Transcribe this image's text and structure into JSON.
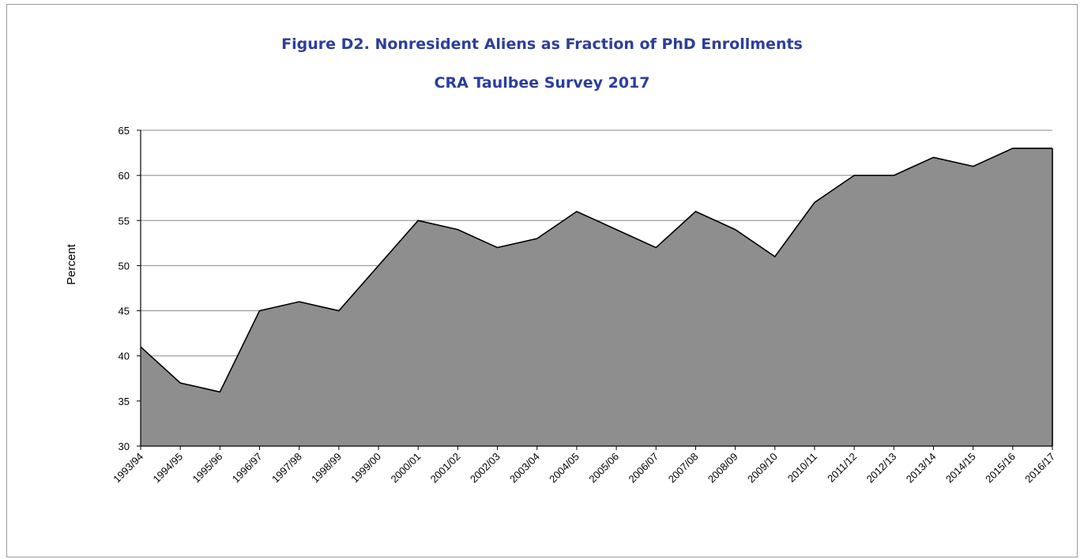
{
  "chart_data": {
    "type": "area",
    "title": "Figure D2. Nonresident Aliens as Fraction of PhD Enrollments",
    "subtitle": "CRA Taulbee Survey 2017",
    "y_label": "Percent",
    "categories": [
      "1993/94",
      "1994/95",
      "1995/96",
      "1996/97",
      "1997/98",
      "1998/99",
      "1999/00",
      "2000/01",
      "2001/02",
      "2002/03",
      "2003/04",
      "2004/05",
      "2005/06",
      "2006/07",
      "2007/08",
      "2008/09",
      "2009/10",
      "2010/11",
      "2011/12",
      "2012/13",
      "2013/14",
      "2014/15",
      "2015/16",
      "2016/17"
    ],
    "values": [
      41,
      37,
      36,
      45,
      46,
      45,
      50,
      55,
      54,
      52,
      53,
      56,
      54,
      52,
      56,
      54,
      51,
      57,
      60,
      60,
      62,
      61,
      63,
      63
    ],
    "color": "#8e8e8e",
    "ylim": [
      30,
      65
    ],
    "yticks": [
      30,
      35,
      40,
      45,
      50,
      55,
      60,
      65
    ],
    "grid": true
  }
}
